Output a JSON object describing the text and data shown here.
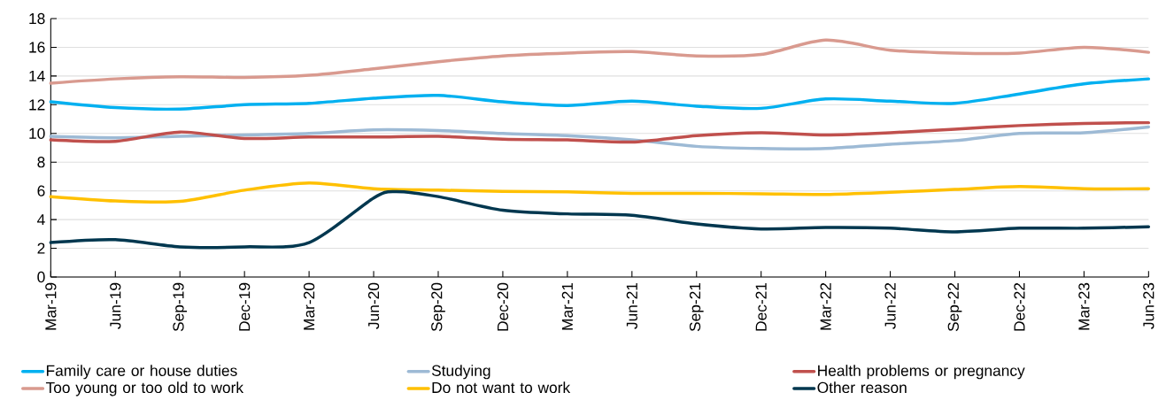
{
  "chart_data": {
    "type": "line",
    "x": [
      "2019-03",
      "2019-06",
      "2019-09",
      "2019-12",
      "2020-03",
      "2020-06",
      "2020-09",
      "2020-12",
      "2021-03",
      "2021-06",
      "2021-09",
      "2021-12",
      "2022-03",
      "2022-06",
      "2022-09",
      "2022-12",
      "2023-03",
      "2023-06"
    ],
    "series": [
      {
        "name": "Family care or house duties",
        "color": "#00b0f0",
        "values": [
          12.2,
          11.8,
          11.7,
          12.0,
          12.1,
          12.45,
          12.65,
          12.2,
          11.95,
          12.25,
          11.9,
          11.75,
          12.4,
          12.25,
          12.1,
          12.75,
          13.45,
          13.8
        ]
      },
      {
        "name": "Studying",
        "color": "#9dbad5",
        "values": [
          9.8,
          9.7,
          9.8,
          9.9,
          10.0,
          10.25,
          10.2,
          10.0,
          9.85,
          9.55,
          9.1,
          8.95,
          8.95,
          9.25,
          9.5,
          10.0,
          10.05,
          10.45
        ]
      },
      {
        "name": "Health problems or pregnancy",
        "color": "#c0504d",
        "values": [
          9.55,
          9.45,
          10.1,
          9.65,
          9.75,
          9.75,
          9.8,
          9.6,
          9.55,
          9.4,
          9.85,
          10.05,
          9.9,
          10.05,
          10.3,
          10.55,
          10.7,
          10.75
        ]
      },
      {
        "name": "Too young or too old to work",
        "color": "#d99a8f",
        "values": [
          13.5,
          13.8,
          13.95,
          13.9,
          14.05,
          14.5,
          15.0,
          15.4,
          15.6,
          15.7,
          15.4,
          15.5,
          16.5,
          15.8,
          15.6,
          15.6,
          16.0,
          15.65
        ]
      },
      {
        "name": "Do not want to work",
        "color": "#ffc000",
        "values": [
          5.6,
          5.3,
          5.27,
          6.05,
          6.55,
          6.15,
          6.05,
          5.97,
          5.93,
          5.83,
          5.83,
          5.8,
          5.75,
          5.9,
          6.1,
          6.3,
          6.15,
          6.15
        ]
      },
      {
        "name": "Other reason",
        "color": "#00374f",
        "x": [
          "2019-03",
          "2019-06",
          "2019-09",
          "2019-12",
          "2020-03",
          "2020-06",
          "2020-07",
          "2020-09",
          "2020-12",
          "2021-03",
          "2021-06",
          "2021-09",
          "2021-12",
          "2022-03",
          "2022-06",
          "2022-09",
          "2022-12",
          "2023-03",
          "2023-06"
        ],
        "values": [
          2.4,
          2.6,
          2.1,
          2.1,
          2.4,
          5.5,
          5.95,
          5.6,
          4.65,
          4.4,
          4.3,
          3.7,
          3.35,
          3.45,
          3.4,
          3.15,
          3.4,
          3.4,
          3.5
        ]
      }
    ],
    "xlim": [
      "2019-03",
      "2023-06"
    ],
    "xticks": [
      {
        "value": "2019-03",
        "label": "Mar-19"
      },
      {
        "value": "2019-06",
        "label": "Jun-19"
      },
      {
        "value": "2019-09",
        "label": "Sep-19"
      },
      {
        "value": "2019-12",
        "label": "Dec-19"
      },
      {
        "value": "2020-03",
        "label": "Mar-20"
      },
      {
        "value": "2020-06",
        "label": "Jun-20"
      },
      {
        "value": "2020-09",
        "label": "Sep-20"
      },
      {
        "value": "2020-12",
        "label": "Dec-20"
      },
      {
        "value": "2021-03",
        "label": "Mar-21"
      },
      {
        "value": "2021-06",
        "label": "Jun-21"
      },
      {
        "value": "2021-09",
        "label": "Sep-21"
      },
      {
        "value": "2021-12",
        "label": "Dec-21"
      },
      {
        "value": "2022-03",
        "label": "Mar-22"
      },
      {
        "value": "2022-06",
        "label": "Jun-22"
      },
      {
        "value": "2022-09",
        "label": "Sep-22"
      },
      {
        "value": "2022-12",
        "label": "Dec-22"
      },
      {
        "value": "2023-03",
        "label": "Mar-23"
      },
      {
        "value": "2023-06",
        "label": "Jun-23"
      }
    ],
    "ylim": [
      0,
      18
    ],
    "yticks": [
      0,
      2,
      4,
      6,
      8,
      10,
      12,
      14,
      16,
      18
    ],
    "grid": "y",
    "legend": "bottom",
    "marker": "none",
    "line_style": "solid"
  }
}
